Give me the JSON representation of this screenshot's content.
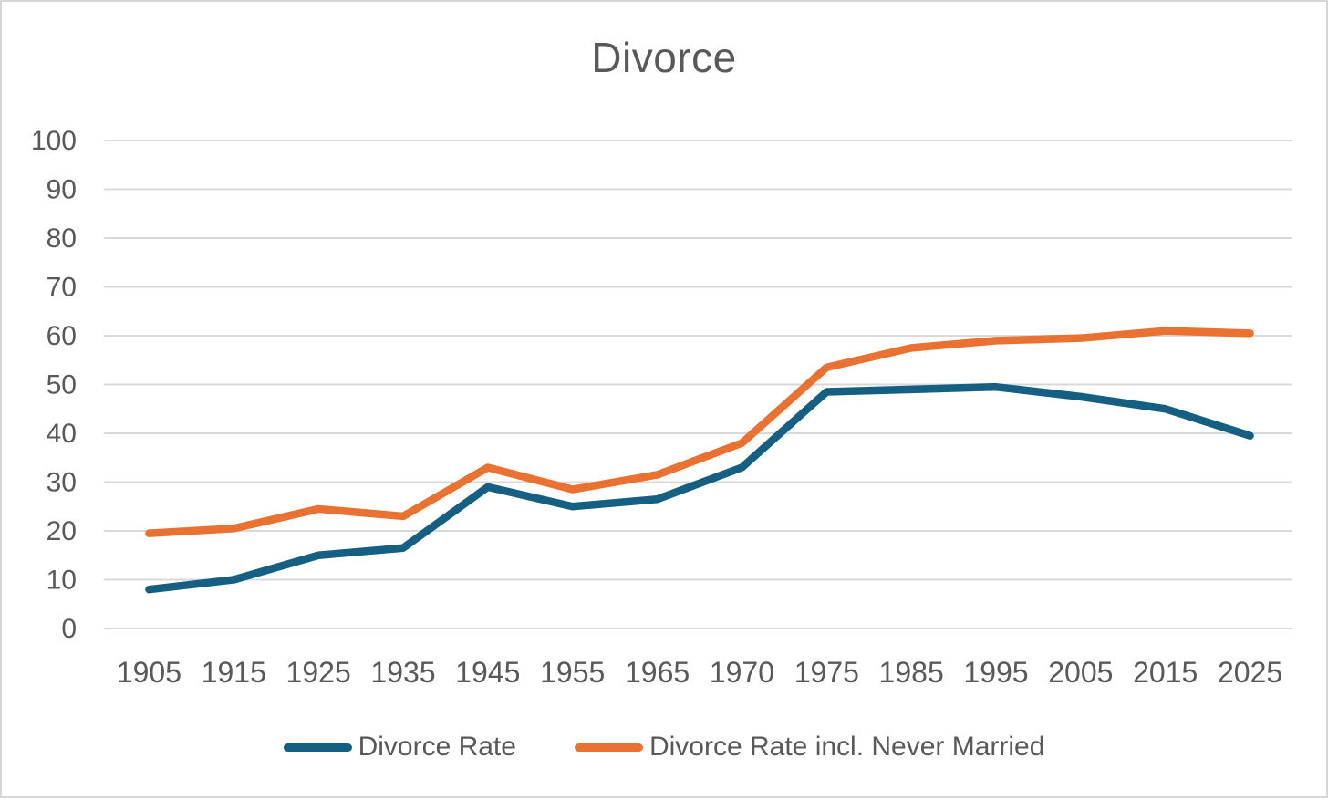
{
  "chart_data": {
    "type": "line",
    "title": "Divorce",
    "categories": [
      "1905",
      "1915",
      "1925",
      "1935",
      "1945",
      "1955",
      "1965",
      "1970",
      "1975",
      "1985",
      "1995",
      "2005",
      "2015",
      "2025"
    ],
    "series": [
      {
        "name": "Divorce Rate",
        "color": "#156082",
        "values": [
          8,
          10,
          15,
          16.5,
          29,
          25,
          26.5,
          33,
          48.5,
          49,
          49.5,
          47.5,
          45,
          39.5
        ]
      },
      {
        "name": "Divorce Rate incl. Never Married",
        "color": "#E97132",
        "values": [
          19.5,
          20.5,
          24.5,
          23,
          33,
          28.5,
          31.5,
          38,
          53.5,
          57.5,
          59,
          59.5,
          61,
          60.5
        ]
      }
    ],
    "ylabel": "",
    "xlabel": "",
    "ylim": [
      0,
      100
    ],
    "yticks": [
      0,
      10,
      20,
      30,
      40,
      50,
      60,
      70,
      80,
      90,
      100
    ],
    "grid": true,
    "gridline_color": "#D9D9D9",
    "text_color": "#595959",
    "legend_position": "bottom",
    "plot_background": "#FFFFFF",
    "frame_border_color": "#D6D6D6"
  }
}
